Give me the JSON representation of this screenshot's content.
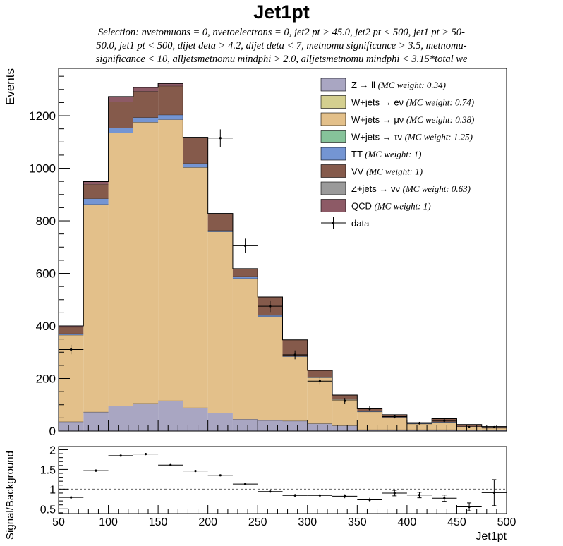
{
  "title": "Jet1pt",
  "selection_lines": [
    "Selection: nvetomuons = 0, nvetoelectrons = 0, jet2 pt > 45.0, jet2 pt < 500, jet1 pt > 50-",
    "50.0, jet1 pt < 500, dijet deta > 4.2, dijet deta < 7, metnomu significance > 3.5, metnomu-",
    "significance < 10, alljetsmetnomu mindphi > 2.0, alljetsmetnomu mindphi < 3.15*total we"
  ],
  "colors": {
    "zll": "#a9a6c2",
    "wenu": "#d4cf8f",
    "wmunu": "#e3c08a",
    "wtaunu": "#86c39a",
    "tt": "#7495d3",
    "vv": "#855a4b",
    "znunu": "#9a9a9a",
    "qcd": "#8d5a66"
  },
  "chart_data": [
    {
      "type": "bar",
      "stacked": true,
      "xlim": [
        50,
        500
      ],
      "ylim": [
        0,
        1380
      ],
      "ylabel": "Events",
      "yticks": [
        0,
        200,
        400,
        600,
        800,
        1000,
        1200
      ],
      "bin_edges": [
        50,
        75,
        100,
        125,
        150,
        175,
        200,
        225,
        250,
        275,
        300,
        325,
        350,
        375,
        400,
        425,
        450,
        475,
        500
      ],
      "legend_position": "top-right",
      "series": [
        {
          "key": "zll",
          "legend": "Z → ll",
          "weight": "(MC weight: 0.34)",
          "values": [
            35,
            72,
            95,
            105,
            115,
            88,
            68,
            45,
            40,
            38,
            28,
            20,
            5,
            5,
            5,
            5,
            4,
            3
          ]
        },
        {
          "key": "wenu",
          "legend": "W+jets → eν",
          "weight": "(MC weight: 0.74)",
          "values": [
            0,
            0,
            0,
            0,
            0,
            0,
            0,
            0,
            0,
            0,
            0,
            0,
            0,
            0,
            0,
            0,
            0,
            0
          ]
        },
        {
          "key": "wmunu",
          "legend": "W+jets → μν",
          "weight": "(MC weight: 0.38)",
          "values": [
            330,
            790,
            1040,
            1070,
            1070,
            915,
            690,
            535,
            395,
            245,
            175,
            100,
            68,
            45,
            22,
            28,
            12,
            8
          ]
        },
        {
          "key": "wtaunu",
          "legend": "W+jets → τν",
          "weight": "(MC weight: 1.25)",
          "values": [
            0,
            0,
            0,
            0,
            0,
            0,
            0,
            0,
            0,
            0,
            0,
            0,
            0,
            0,
            0,
            0,
            0,
            0
          ]
        },
        {
          "key": "tt",
          "legend": "TT",
          "weight": "(MC weight: 1)",
          "values": [
            5,
            22,
            18,
            18,
            18,
            15,
            5,
            8,
            5,
            4,
            3,
            2,
            2,
            2,
            2,
            2,
            1,
            1
          ]
        },
        {
          "key": "vv",
          "legend": "VV",
          "weight": "(MC weight: 1)",
          "values": [
            25,
            55,
            100,
            100,
            110,
            100,
            65,
            30,
            70,
            60,
            25,
            15,
            10,
            10,
            3,
            12,
            8,
            5
          ]
        },
        {
          "key": "znunu",
          "legend": "Z+jets → νν",
          "weight": "(MC weight: 0.63)",
          "values": [
            0,
            0,
            0,
            0,
            0,
            0,
            0,
            0,
            0,
            0,
            0,
            0,
            0,
            0,
            0,
            0,
            0,
            0
          ]
        },
        {
          "key": "qcd",
          "legend": "QCD",
          "weight": "(MC weight: 1)",
          "values": [
            5,
            10,
            20,
            15,
            10,
            0,
            0,
            0,
            0,
            0,
            0,
            0,
            0,
            0,
            0,
            0,
            0,
            0
          ]
        }
      ],
      "data_series": {
        "legend": "data",
        "x": [
          62.5,
          87.5,
          112.5,
          137.5,
          162.5,
          187.5,
          212.5,
          237.5,
          262.5,
          287.5,
          312.5,
          337.5,
          362.5,
          387.5,
          412.5,
          437.5,
          462.5,
          487.5
        ],
        "y": [
          310,
          0,
          0,
          0,
          0,
          0,
          1115,
          705,
          475,
          290,
          190,
          115,
          85,
          55,
          30,
          40,
          15,
          15
        ],
        "yerr": [
          18,
          0,
          0,
          0,
          0,
          0,
          33,
          27,
          22,
          17,
          14,
          11,
          9,
          7,
          5,
          6,
          4,
          4
        ]
      }
    },
    {
      "type": "scatter",
      "xlim": [
        50,
        500
      ],
      "ylim": [
        0.38,
        2.08
      ],
      "xlabel": "Jet1pt",
      "ylabel": "Signal/Background",
      "xticks": [
        50,
        100,
        150,
        200,
        250,
        300,
        350,
        400,
        450,
        500
      ],
      "yticks": [
        0.5,
        1,
        1.5,
        2
      ],
      "ytick_labels": [
        "0.5",
        "1",
        "1.5",
        "2"
      ],
      "reference_line": 1,
      "x": [
        62.5,
        87.5,
        112.5,
        137.5,
        162.5,
        187.5,
        212.5,
        237.5,
        262.5,
        287.5,
        312.5,
        337.5,
        362.5,
        387.5,
        412.5,
        437.5,
        462.5,
        487.5
      ],
      "y": [
        0.79,
        1.47,
        1.85,
        1.89,
        1.61,
        1.46,
        1.35,
        1.13,
        0.94,
        0.84,
        0.84,
        0.82,
        0.73,
        0.9,
        0.85,
        0.77,
        0.55,
        0.91
      ],
      "yerr": [
        0.04,
        0.03,
        0.02,
        0.02,
        0.02,
        0.02,
        0.02,
        0.03,
        0.03,
        0.04,
        0.04,
        0.05,
        0.05,
        0.07,
        0.07,
        0.08,
        0.1,
        0.33
      ]
    }
  ]
}
